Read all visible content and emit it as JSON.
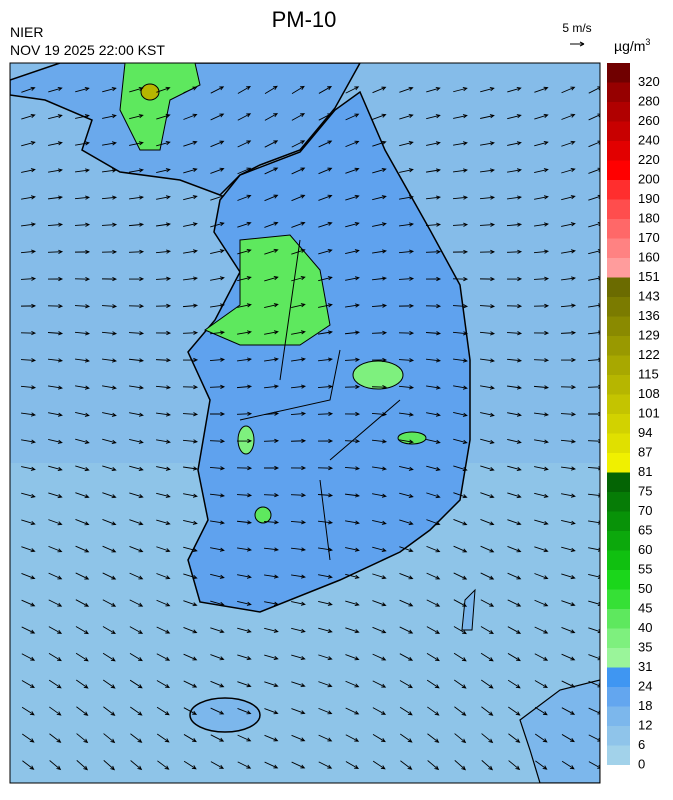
{
  "header": {
    "title": "PM-10",
    "agency": "NIER",
    "timestamp": "NOV 19 2025 22:00 KST"
  },
  "wind_legend": {
    "label": "5 m/s"
  },
  "colorbar": {
    "units": {
      "base": "µg/m",
      "exponent": "3"
    },
    "ticks": [
      0,
      6,
      12,
      18,
      24,
      31,
      35,
      40,
      45,
      50,
      55,
      60,
      65,
      70,
      75,
      81,
      87,
      94,
      101,
      108,
      115,
      122,
      129,
      136,
      143,
      151,
      160,
      170,
      180,
      190,
      200,
      220,
      240,
      260,
      280,
      320
    ],
    "colors": [
      "#a2d2ea",
      "#8fc4ea",
      "#7cb7ec",
      "#63a6ef",
      "#3f96f2",
      "#9af59a",
      "#7ef07e",
      "#5ee85e",
      "#36e036",
      "#1bd61b",
      "#10c010",
      "#0ca80c",
      "#089208",
      "#067c06",
      "#046404",
      "#f0f000",
      "#e0e000",
      "#d2d200",
      "#c4c400",
      "#b6b600",
      "#a8a800",
      "#999900",
      "#8a8a00",
      "#7b7b00",
      "#6b6b00",
      "#ff9c9c",
      "#ff8282",
      "#ff6868",
      "#ff4d4d",
      "#ff2e2e",
      "#ff0000",
      "#e20000",
      "#c80000",
      "#b00000",
      "#960000",
      "#700000"
    ]
  }
}
